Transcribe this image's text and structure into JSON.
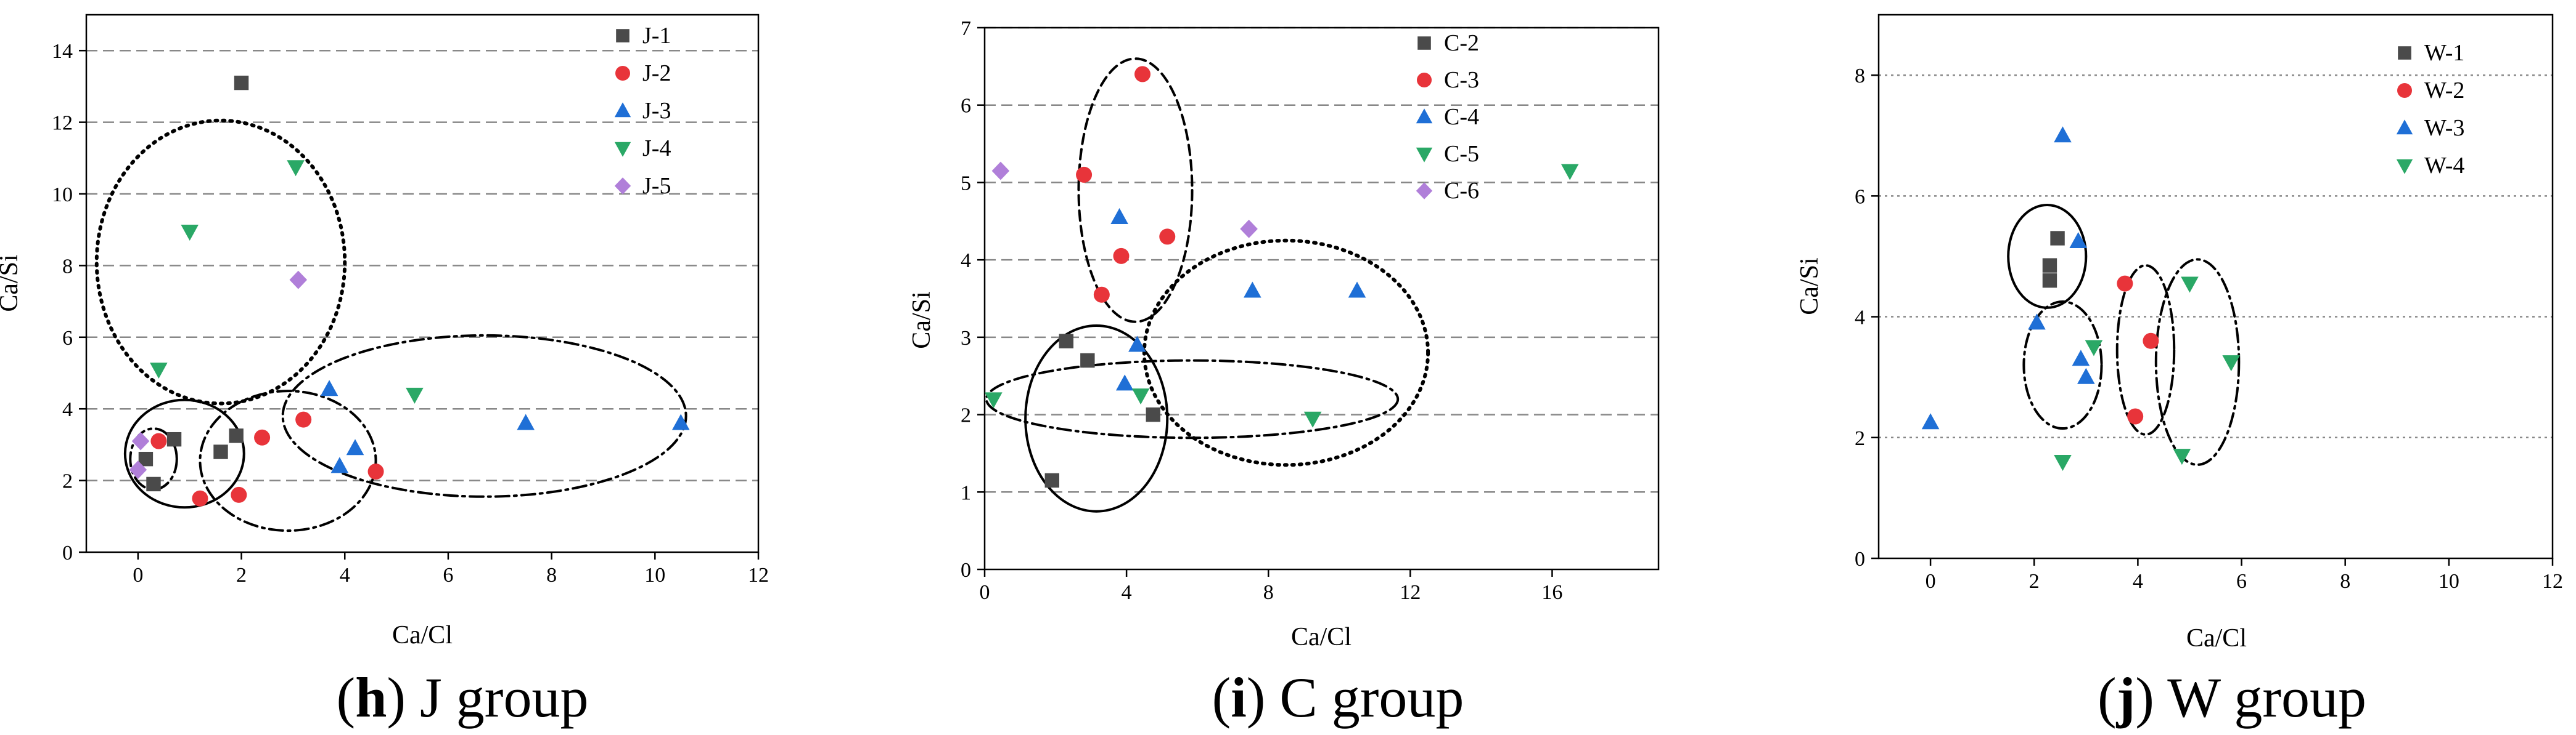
{
  "colors": {
    "s1": "#4a4a4a",
    "s2": "#e8343a",
    "s3": "#1f6fd6",
    "s4": "#2aa866",
    "s5": "#b07fd9",
    "axis": "#000000",
    "grid": "#888888"
  },
  "icons": {
    "s1": "square-marker-icon",
    "s2": "circle-marker-icon",
    "s3": "triangle-up-marker-icon",
    "s4": "triangle-down-marker-icon",
    "s5": "diamond-marker-icon"
  },
  "captions": [
    {
      "letter": "h",
      "text": " J group"
    },
    {
      "letter": "i",
      "text": " C group"
    },
    {
      "letter": "j",
      "text": " W group"
    }
  ],
  "chart_data": [
    {
      "type": "scatter",
      "title": "",
      "caption": "(h) J group",
      "xlabel": "Ca/Cl",
      "ylabel": "Ca/Si",
      "xlim": [
        -1,
        12
      ],
      "ylim": [
        0,
        15
      ],
      "xticks": [
        0,
        2,
        4,
        6,
        8,
        10,
        12
      ],
      "yticks": [
        0,
        2,
        4,
        6,
        8,
        10,
        12,
        14
      ],
      "grid": "horizontal dashed",
      "legend": "top-right",
      "series": [
        {
          "name": "J-1",
          "marker": "square",
          "points": [
            [
              0.15,
              2.6
            ],
            [
              0.3,
              1.9
            ],
            [
              0.7,
              3.15
            ],
            [
              1.6,
              2.8
            ],
            [
              1.9,
              3.25
            ],
            [
              2.0,
              13.1
            ]
          ]
        },
        {
          "name": "J-2",
          "marker": "circle",
          "points": [
            [
              0.4,
              3.1
            ],
            [
              1.2,
              1.5
            ],
            [
              1.95,
              1.6
            ],
            [
              2.4,
              3.2
            ],
            [
              3.2,
              3.7
            ],
            [
              4.6,
              2.25
            ]
          ]
        },
        {
          "name": "J-3",
          "marker": "triangle-up",
          "points": [
            [
              3.7,
              4.55
            ],
            [
              3.9,
              2.4
            ],
            [
              4.2,
              2.9
            ],
            [
              7.5,
              3.6
            ],
            [
              10.5,
              3.6
            ]
          ]
        },
        {
          "name": "J-4",
          "marker": "triangle-down",
          "points": [
            [
              1.0,
              8.95
            ],
            [
              3.05,
              10.75
            ],
            [
              0.4,
              5.1
            ],
            [
              5.35,
              4.4
            ]
          ]
        },
        {
          "name": "J-5",
          "marker": "diamond",
          "points": [
            [
              3.1,
              7.6
            ],
            [
              0.0,
              2.3
            ],
            [
              0.05,
              3.1
            ]
          ]
        }
      ],
      "annotations": [
        "dotted ellipse",
        "solid ellipse",
        "dash-dot ellipses"
      ]
    },
    {
      "type": "scatter",
      "title": "",
      "caption": "(i) C group",
      "xlabel": "Ca/Cl",
      "ylabel": "Ca/Si",
      "xlim": [
        0,
        19
      ],
      "ylim": [
        0,
        7
      ],
      "xticks": [
        0,
        4,
        8,
        12,
        16
      ],
      "yticks": [
        0,
        1,
        2,
        3,
        4,
        5,
        6,
        7
      ],
      "grid": "horizontal dashed",
      "legend": "top-right",
      "series": [
        {
          "name": "C-2",
          "marker": "square",
          "points": [
            [
              2.3,
              2.95
            ],
            [
              1.9,
              1.15
            ],
            [
              2.9,
              2.7
            ],
            [
              4.75,
              2.0
            ]
          ]
        },
        {
          "name": "C-3",
          "marker": "circle",
          "points": [
            [
              2.8,
              5.1
            ],
            [
              4.45,
              6.4
            ],
            [
              3.3,
              3.55
            ],
            [
              3.85,
              4.05
            ],
            [
              5.15,
              4.3
            ]
          ]
        },
        {
          "name": "C-4",
          "marker": "triangle-up",
          "points": [
            [
              3.8,
              4.55
            ],
            [
              4.3,
              2.9
            ],
            [
              3.95,
              2.4
            ],
            [
              7.55,
              3.6
            ],
            [
              10.5,
              3.6
            ]
          ]
        },
        {
          "name": "C-5",
          "marker": "triangle-down",
          "points": [
            [
              0.25,
              2.2
            ],
            [
              4.4,
              2.25
            ],
            [
              9.25,
              1.95
            ],
            [
              16.5,
              5.15
            ]
          ]
        },
        {
          "name": "C-6",
          "marker": "diamond",
          "points": [
            [
              0.45,
              5.15
            ],
            [
              7.45,
              4.4
            ]
          ]
        }
      ],
      "annotations": [
        "dashed ellipse",
        "dotted ellipse",
        "solid ellipse",
        "dash-dot ellipse"
      ]
    },
    {
      "type": "scatter",
      "title": "",
      "caption": "(j) W group",
      "xlabel": "Ca/Cl",
      "ylabel": "Ca/Si",
      "xlim": [
        -1,
        12
      ],
      "ylim": [
        0,
        9
      ],
      "xticks": [
        0,
        2,
        4,
        6,
        8,
        10,
        12
      ],
      "yticks": [
        0,
        2,
        4,
        6,
        8
      ],
      "grid": "horizontal dotted",
      "legend": "top-right",
      "series": [
        {
          "name": "W-1",
          "marker": "square",
          "points": [
            [
              2.45,
              5.3
            ],
            [
              2.3,
              4.85
            ],
            [
              2.3,
              4.6
            ]
          ]
        },
        {
          "name": "W-2",
          "marker": "circle",
          "points": [
            [
              3.75,
              4.55
            ],
            [
              4.25,
              3.6
            ],
            [
              3.95,
              2.35
            ]
          ]
        },
        {
          "name": "W-3",
          "marker": "triangle-up",
          "points": [
            [
              0.0,
              2.25
            ],
            [
              2.55,
              7.0
            ],
            [
              2.85,
              5.25
            ],
            [
              2.05,
              3.9
            ],
            [
              2.9,
              3.3
            ],
            [
              3.0,
              3.0
            ]
          ]
        },
        {
          "name": "W-4",
          "marker": "triangle-down",
          "points": [
            [
              5.0,
              4.55
            ],
            [
              3.15,
              3.5
            ],
            [
              5.8,
              3.25
            ],
            [
              2.55,
              1.6
            ],
            [
              4.85,
              1.7
            ]
          ]
        }
      ],
      "annotations": [
        "solid ellipse",
        "dash-dot ellipses"
      ]
    }
  ]
}
